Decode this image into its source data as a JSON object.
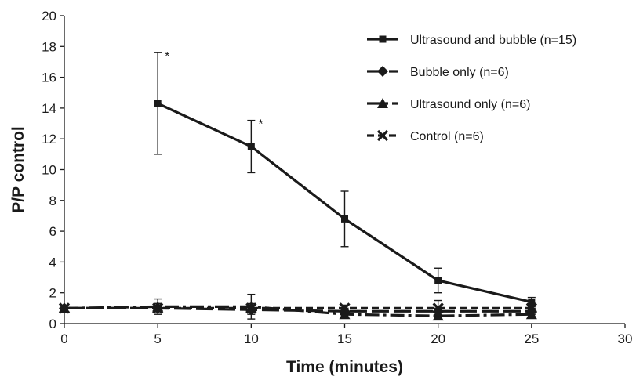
{
  "chart_data": {
    "type": "line",
    "xlabel": "Time (minutes)",
    "ylabel": "P/P control",
    "xlim": [
      0,
      30
    ],
    "ylim": [
      0,
      20
    ],
    "x_ticks": [
      0,
      5,
      10,
      15,
      20,
      25,
      30
    ],
    "y_ticks": [
      0,
      2,
      4,
      6,
      8,
      10,
      12,
      14,
      16,
      18,
      20
    ],
    "grid": false,
    "legend_position": "top-right",
    "series": [
      {
        "name": "Ultrasound and bubble (n=15)",
        "marker": "square",
        "line": "solid",
        "x": [
          5,
          10,
          15,
          20,
          25
        ],
        "y": [
          14.3,
          11.5,
          6.8,
          2.8,
          1.4
        ],
        "error": [
          3.3,
          1.7,
          1.8,
          0.8,
          0.3
        ]
      },
      {
        "name": "Bubble only (n=6)",
        "marker": "diamond",
        "line": "long-dash",
        "x": [
          0,
          5,
          10,
          15,
          20,
          25
        ],
        "y": [
          1.0,
          1.0,
          0.9,
          0.8,
          0.8,
          0.8
        ],
        "error": [
          0,
          0.3,
          0.3,
          0.2,
          0.2,
          0.2
        ]
      },
      {
        "name": "Ultrasound only (n=6)",
        "marker": "triangle",
        "line": "dash-dot",
        "x": [
          0,
          5,
          10,
          15,
          20,
          25
        ],
        "y": [
          1.0,
          1.1,
          1.1,
          0.6,
          0.5,
          0.6
        ],
        "error": [
          0,
          0.5,
          0.8,
          0.2,
          0.2,
          0.2
        ]
      },
      {
        "name": "Control (n=6)",
        "marker": "x",
        "line": "short-dash",
        "x": [
          0,
          5,
          10,
          15,
          20,
          25
        ],
        "y": [
          1.0,
          1.0,
          1.0,
          1.0,
          1.0,
          1.0
        ],
        "error": [
          0,
          0.3,
          0.3,
          0.2,
          0.5,
          0.3
        ]
      }
    ],
    "annotations": [
      {
        "text": "*",
        "x": 5,
        "y": 17.6
      },
      {
        "text": "*",
        "x": 10,
        "y": 13.2
      }
    ]
  }
}
